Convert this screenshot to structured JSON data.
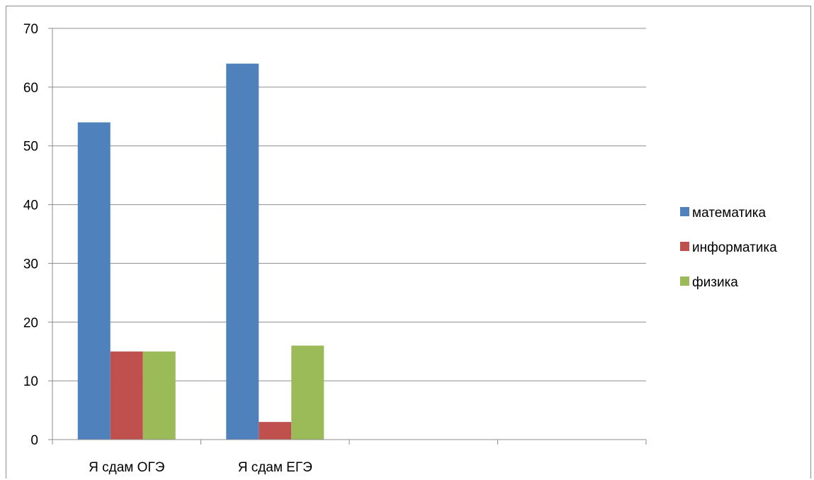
{
  "chart_data": {
    "type": "bar",
    "title": "",
    "xlabel": "",
    "ylabel": "",
    "ylim": [
      0,
      70
    ],
    "yticks": [
      "0",
      "10",
      "20",
      "30",
      "40",
      "50",
      "60",
      "70"
    ],
    "grid": true,
    "legend_position": "right",
    "categories": [
      "Я сдам ОГЭ",
      "Я сдам ЕГЭ",
      "",
      ""
    ],
    "series": [
      {
        "name": "математика",
        "color": "#4f81bd",
        "values": [
          54,
          64,
          null,
          null
        ]
      },
      {
        "name": "информатика",
        "color": "#c0504d",
        "values": [
          15,
          3,
          null,
          null
        ]
      },
      {
        "name": "физика",
        "color": "#9bbb59",
        "values": [
          15,
          16,
          null,
          null
        ]
      }
    ]
  }
}
